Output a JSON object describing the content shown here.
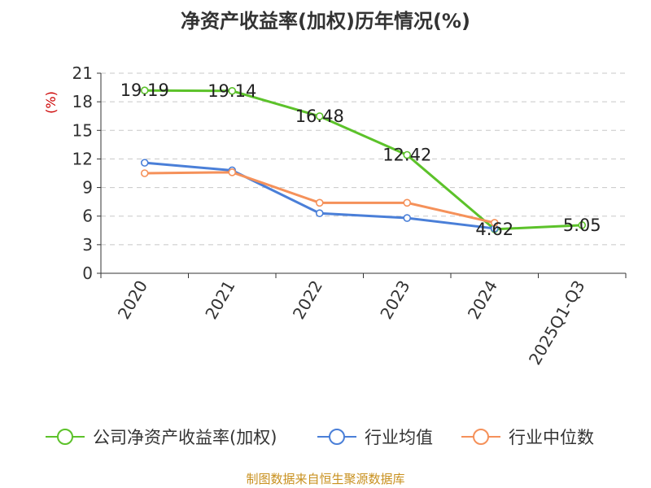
{
  "chart_data": {
    "type": "line",
    "title": "净资产收益率(加权)历年情况(%)",
    "ylabel": "(%)",
    "xlabel": "",
    "categories": [
      "2020",
      "2021",
      "2022",
      "2023",
      "2024",
      "2025Q1-Q3"
    ],
    "ylim": [
      0,
      21
    ],
    "yticks": [
      0,
      3,
      6,
      9,
      12,
      15,
      18,
      21
    ],
    "grid": true,
    "legend_position": "bottom",
    "series": [
      {
        "name": "公司净资产收益率(加权)",
        "color": "#5cc22a",
        "values": [
          19.19,
          19.14,
          16.48,
          12.42,
          4.62,
          5.05
        ],
        "labels": [
          "19.19",
          "19.14",
          "16.48",
          "12.42",
          "4.62",
          "5.05"
        ]
      },
      {
        "name": "行业均值",
        "color": "#4a7fd8",
        "values": [
          11.6,
          10.8,
          6.3,
          5.8,
          4.7,
          null
        ]
      },
      {
        "name": "行业中位数",
        "color": "#f5915a",
        "values": [
          10.5,
          10.6,
          7.4,
          7.4,
          5.3,
          null
        ]
      }
    ],
    "source": "制图数据来自恒生聚源数据库"
  }
}
